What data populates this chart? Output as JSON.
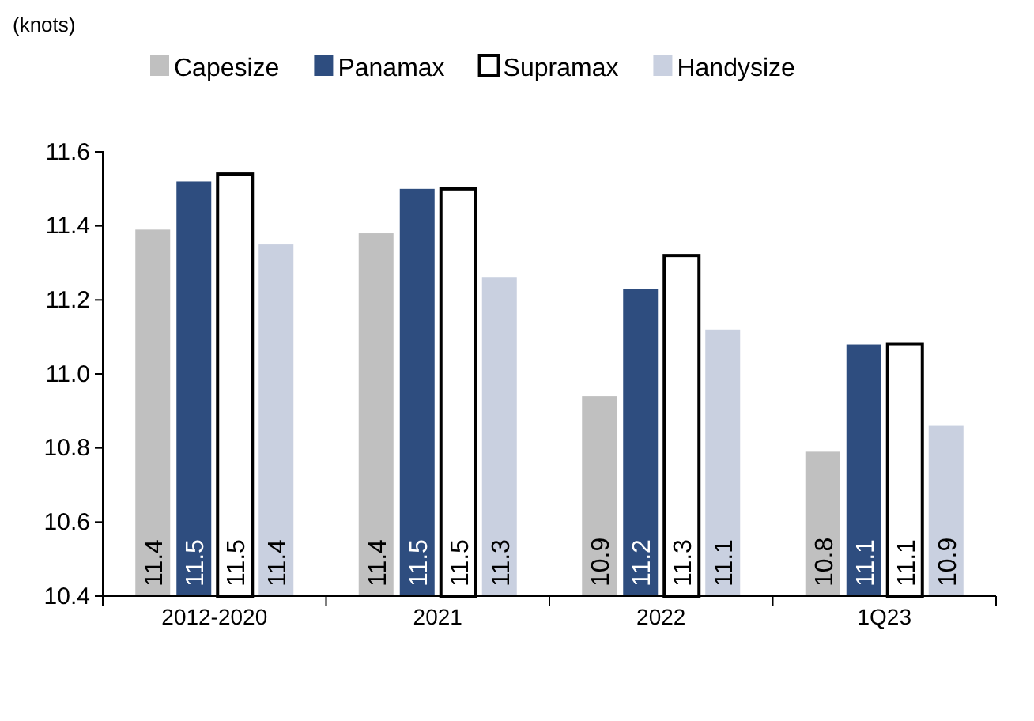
{
  "chart_data": {
    "type": "bar",
    "annotations": [
      "(knots)"
    ],
    "categories": [
      "2012-2020",
      "2021",
      "2022",
      "1Q23"
    ],
    "series": [
      {
        "name": "Capesize",
        "color": "#c0c0c0",
        "values": [
          11.39,
          11.38,
          10.94,
          10.79
        ],
        "value_labels": [
          "11.4",
          "11.4",
          "10.9",
          "10.8"
        ]
      },
      {
        "name": "Panamax",
        "color": "#2e4d7f",
        "values": [
          11.52,
          11.5,
          11.23,
          11.08
        ],
        "value_labels": [
          "11.5",
          "11.5",
          "11.2",
          "11.1"
        ]
      },
      {
        "name": "Supramax",
        "color": "#ffffff",
        "values": [
          11.54,
          11.5,
          11.32,
          11.08
        ],
        "value_labels": [
          "11.5",
          "11.5",
          "11.3",
          "11.1"
        ]
      },
      {
        "name": "Handysize",
        "color": "#c9d0e0",
        "values": [
          11.35,
          11.26,
          11.12,
          10.86
        ],
        "value_labels": [
          "11.4",
          "11.3",
          "11.1",
          "10.9"
        ]
      }
    ],
    "ylim": [
      10.4,
      11.6
    ],
    "yticks": [
      "10.4",
      "10.6",
      "10.8",
      "11.0",
      "11.2",
      "11.4",
      "11.6"
    ],
    "legend": "top",
    "grid": false
  }
}
